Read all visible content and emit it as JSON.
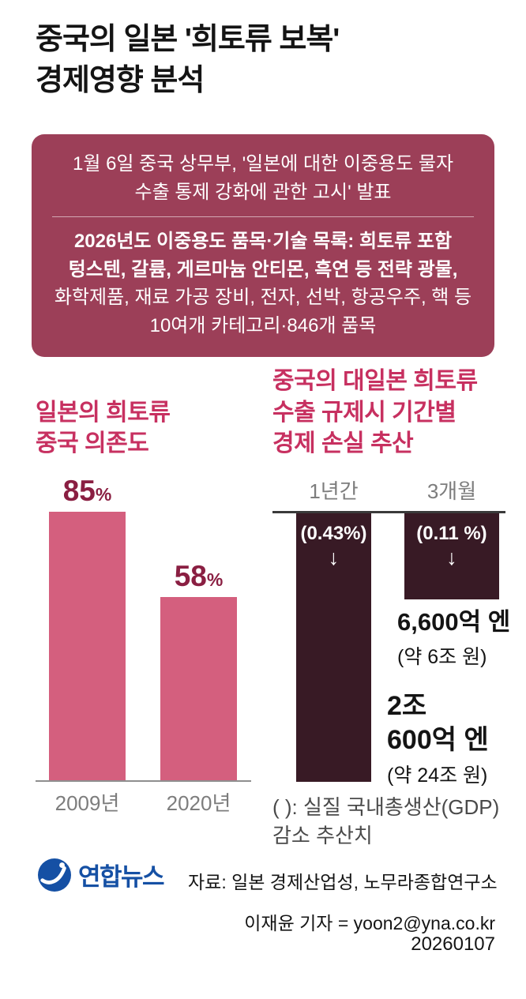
{
  "header": {
    "title_lines": [
      "중국의 일본 '희토류 보복'",
      "경제영향 분석"
    ]
  },
  "notice_box": {
    "p1_lines": [
      "1월 6일 중국 상무부, '일본에 대한 이중용도 물자",
      "수출 통제 강화에 관한 고시' 발표"
    ],
    "p2_bold_lines": [
      "2026년도 이중용도 품목·기술 목록: 희토류 포함",
      "텅스텐, 갈륨, 게르마늄 안티몬, 흑연 등 전략 광물,"
    ],
    "p2_lines": [
      "화학제품, 재료 가공 장비, 전자, 선박, 항공우주, 핵 등",
      "10여개 카테고리·846개 품목"
    ]
  },
  "left_chart": {
    "title_lines": [
      "일본의 희토류",
      "중국 의존도"
    ],
    "bars": [
      {
        "value_display": "85",
        "unit": "%",
        "category": "2009년"
      },
      {
        "value_display": "58",
        "unit": "%",
        "category": "2020년"
      }
    ]
  },
  "right_chart": {
    "title_lines": [
      "중국의 대일본 희토류",
      "수출 규제시 기간별",
      "경제 손실 추산"
    ],
    "bars": [
      {
        "period": "1년간",
        "gdp_label": "(0.43%)",
        "arrow": "↓",
        "loss_label_lines": [
          "2조",
          "600억 엔"
        ],
        "loss_sub": "(약 24조 원)"
      },
      {
        "period": "3개월",
        "gdp_label": "(0.11 %)",
        "arrow": "↓",
        "loss_label_lines": [
          "6,600억 엔"
        ],
        "loss_sub": "(약 6조 원)"
      }
    ],
    "note_lines": [
      "( ): 실질 국내총생산(GDP)",
      "감소 추산치"
    ]
  },
  "chart_data": [
    {
      "type": "bar",
      "title": "일본의 희토류 중국 의존도",
      "categories": [
        "2009년",
        "2020년"
      ],
      "values": [
        85,
        58
      ],
      "unit": "%",
      "ylim": [
        0,
        100
      ],
      "bar_color": "#d45f7e",
      "value_labels": [
        "85%",
        "58%"
      ],
      "grid": false,
      "legend": "none"
    },
    {
      "type": "bar",
      "title": "중국의 대일본 희토류 수출 규제시 기간별 경제 손실 추산",
      "categories": [
        "1년간",
        "3개월"
      ],
      "values": [
        20600,
        6600
      ],
      "unit": "억 엔",
      "direction": "down",
      "bar_color": "#381a25",
      "value_labels": [
        "2조 600억 엔 (약 24조 원)",
        "6,600억 엔 (약 6조 원)"
      ],
      "gdp_decrease_pct": [
        0.43,
        0.11
      ],
      "gdp_decrease_labels": [
        "(0.43%)",
        "(0.11 %)"
      ],
      "note": "( ): 실질 국내총생산(GDP) 감소 추산치",
      "grid": false,
      "legend": "none"
    }
  ],
  "footer": {
    "logo_text": "연합뉴스",
    "source": "자료: 일본 경제산업성, 노무라종합연구소",
    "byline": "이재윤 기자 = yoon2@yna.co.kr",
    "date": "20260107"
  },
  "colors": {
    "notice_box_bg": "#9c3f58",
    "chart_title": "#c73060",
    "value_label": "#8a1f42",
    "bar_pink": "#d45f7e",
    "bar_dark": "#381a25",
    "category_gray": "#7d7d7d",
    "logo_blue": "#1550a4"
  }
}
